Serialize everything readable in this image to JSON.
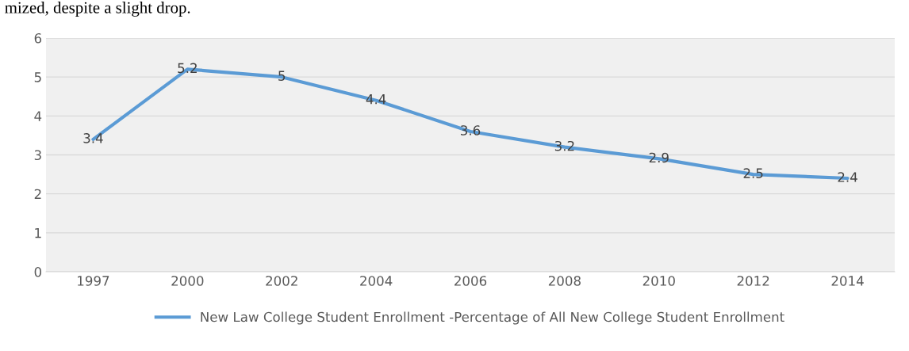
{
  "chart_data": {
    "type": "line",
    "categories": [
      "1997",
      "2000",
      "2002",
      "2004",
      "2006",
      "2008",
      "2010",
      "2012",
      "2014"
    ],
    "series": [
      {
        "name": "New Law College Student Enrollment -Percentage of All New College Student Enrollment",
        "color": "#5b9bd5",
        "values": [
          3.4,
          5.2,
          5,
          4.4,
          3.6,
          3.2,
          2.9,
          2.5,
          2.4
        ]
      }
    ],
    "ylim": [
      0,
      6
    ],
    "yticks": [
      0,
      1,
      2,
      3,
      4,
      5,
      6
    ],
    "grid": "y",
    "legend": "bottom",
    "data_labels": true,
    "marker": "none",
    "line_style": "solid",
    "annotations": [
      "mized, despite a slight drop."
    ]
  }
}
